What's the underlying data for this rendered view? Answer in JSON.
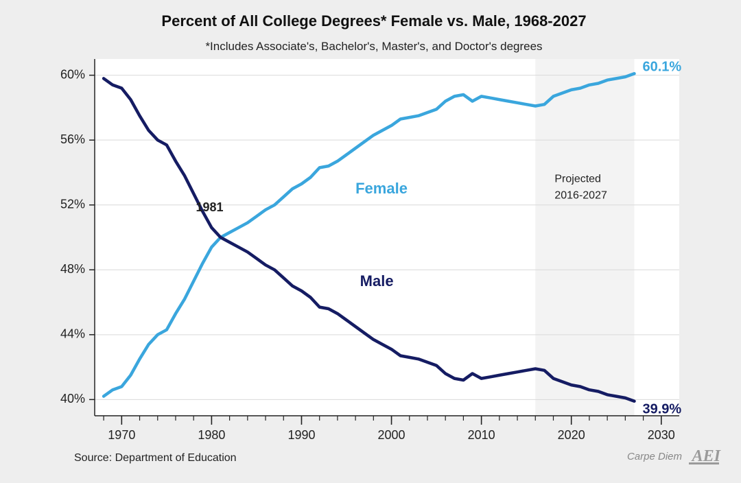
{
  "chart": {
    "type": "line",
    "title": "Percent of All College Degrees* Female vs. Male, 1968-2027",
    "subtitle": "*Includes Associate's, Bachelor's, Master's, and Doctor's degrees",
    "source": "Source: Department of Education",
    "brand_left": "Carpe Diem",
    "brand_right": "AEI",
    "background_color": "#eeeeee",
    "plot_background": "#ffffff",
    "projected_background": "#f3f3f3",
    "projected_label_line1": "Projected",
    "projected_label_line2": "2016-2027",
    "x": {
      "min": 1967,
      "max": 2032,
      "major_ticks": [
        1970,
        1980,
        1990,
        2000,
        2010,
        2020,
        2030
      ],
      "minor_step": 2
    },
    "y": {
      "min": 39,
      "max": 61,
      "ticks": [
        40,
        44,
        48,
        52,
        56,
        60
      ],
      "unit": "%"
    },
    "grid_color": "#d9d9d9",
    "axis_color": "#222222",
    "tick_color": "#222222",
    "crossover_year": 1981,
    "crossover_label": "1981",
    "projected_start_year": 2016,
    "projected_end_year": 2027,
    "line_width": 4.5,
    "title_fontsize": 22,
    "subtitle_fontsize": 17,
    "axis_fontsize": 18,
    "series_label_fontsize": 22,
    "end_label_fontsize": 20,
    "series": {
      "female": {
        "label": "Female",
        "color": "#3aa6dd",
        "end_label": "60.1%",
        "years": [
          1968,
          1969,
          1970,
          1971,
          1972,
          1973,
          1974,
          1975,
          1976,
          1977,
          1978,
          1979,
          1980,
          1981,
          1982,
          1983,
          1984,
          1985,
          1986,
          1987,
          1988,
          1989,
          1990,
          1991,
          1992,
          1993,
          1994,
          1995,
          1996,
          1997,
          1998,
          1999,
          2000,
          2001,
          2002,
          2003,
          2004,
          2005,
          2006,
          2007,
          2008,
          2009,
          2010,
          2011,
          2012,
          2013,
          2014,
          2015,
          2016,
          2017,
          2018,
          2019,
          2020,
          2021,
          2022,
          2023,
          2024,
          2025,
          2026,
          2027
        ],
        "values": [
          40.2,
          40.6,
          40.8,
          41.5,
          42.5,
          43.4,
          44.0,
          44.3,
          45.3,
          46.2,
          47.3,
          48.4,
          49.4,
          50.0,
          50.3,
          50.6,
          50.9,
          51.3,
          51.7,
          52.0,
          52.5,
          53.0,
          53.3,
          53.7,
          54.3,
          54.4,
          54.7,
          55.1,
          55.5,
          55.9,
          56.3,
          56.6,
          56.9,
          57.3,
          57.4,
          57.5,
          57.7,
          57.9,
          58.4,
          58.7,
          58.8,
          58.4,
          58.7,
          58.6,
          58.5,
          58.4,
          58.3,
          58.2,
          58.1,
          58.2,
          58.7,
          58.9,
          59.1,
          59.2,
          59.4,
          59.5,
          59.7,
          59.8,
          59.9,
          60.1
        ]
      },
      "male": {
        "label": "Male",
        "color": "#151c63",
        "end_label": "39.9%",
        "years": [
          1968,
          1969,
          1970,
          1971,
          1972,
          1973,
          1974,
          1975,
          1976,
          1977,
          1978,
          1979,
          1980,
          1981,
          1982,
          1983,
          1984,
          1985,
          1986,
          1987,
          1988,
          1989,
          1990,
          1991,
          1992,
          1993,
          1994,
          1995,
          1996,
          1997,
          1998,
          1999,
          2000,
          2001,
          2002,
          2003,
          2004,
          2005,
          2006,
          2007,
          2008,
          2009,
          2010,
          2011,
          2012,
          2013,
          2014,
          2015,
          2016,
          2017,
          2018,
          2019,
          2020,
          2021,
          2022,
          2023,
          2024,
          2025,
          2026,
          2027
        ],
        "values": [
          59.8,
          59.4,
          59.2,
          58.5,
          57.5,
          56.6,
          56.0,
          55.7,
          54.7,
          53.8,
          52.7,
          51.6,
          50.6,
          50.0,
          49.7,
          49.4,
          49.1,
          48.7,
          48.3,
          48.0,
          47.5,
          47.0,
          46.7,
          46.3,
          45.7,
          45.6,
          45.3,
          44.9,
          44.5,
          44.1,
          43.7,
          43.4,
          43.1,
          42.7,
          42.6,
          42.5,
          42.3,
          42.1,
          41.6,
          41.3,
          41.2,
          41.6,
          41.3,
          41.4,
          41.5,
          41.6,
          41.7,
          41.8,
          41.9,
          41.8,
          41.3,
          41.1,
          40.9,
          40.8,
          40.6,
          40.5,
          40.3,
          40.2,
          40.1,
          39.9
        ]
      }
    }
  }
}
